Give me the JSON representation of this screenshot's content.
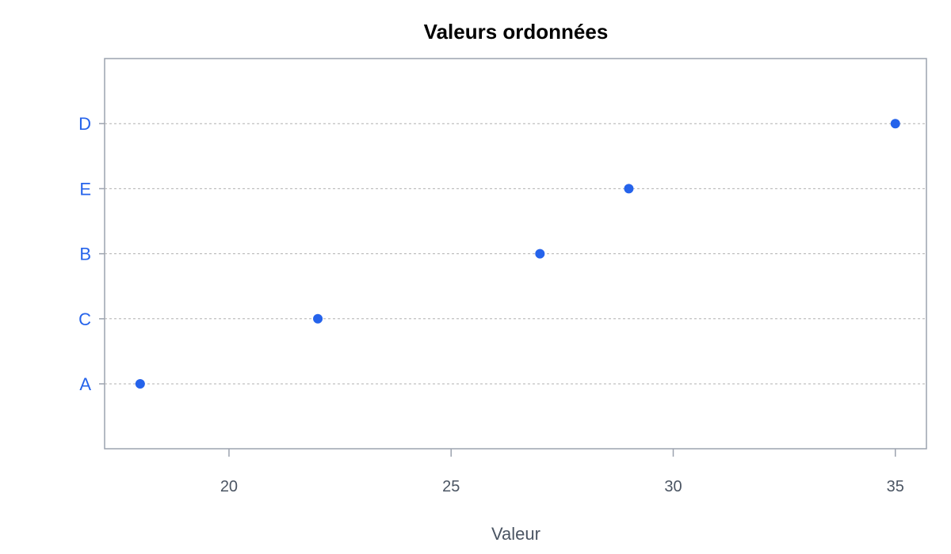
{
  "chart_data": {
    "type": "scatter",
    "title": "Valeurs ordonnées",
    "xlabel": "Valeur",
    "ylabel": "",
    "categories": [
      "A",
      "C",
      "B",
      "E",
      "D"
    ],
    "values": [
      18,
      22,
      27,
      29,
      35
    ],
    "xlim": [
      17.2,
      35.7
    ],
    "xticks": [
      20,
      25,
      30,
      35
    ],
    "xtick_labels": [
      "20",
      "25",
      "30",
      "35"
    ],
    "grid": "horizontal-dotted",
    "legend": "none",
    "colors": {
      "point": "#2563eb",
      "category_label": "#2563eb",
      "axis_text": "#4b5563",
      "frame": "#9ca3af",
      "grid": "#b0b0b0"
    }
  }
}
